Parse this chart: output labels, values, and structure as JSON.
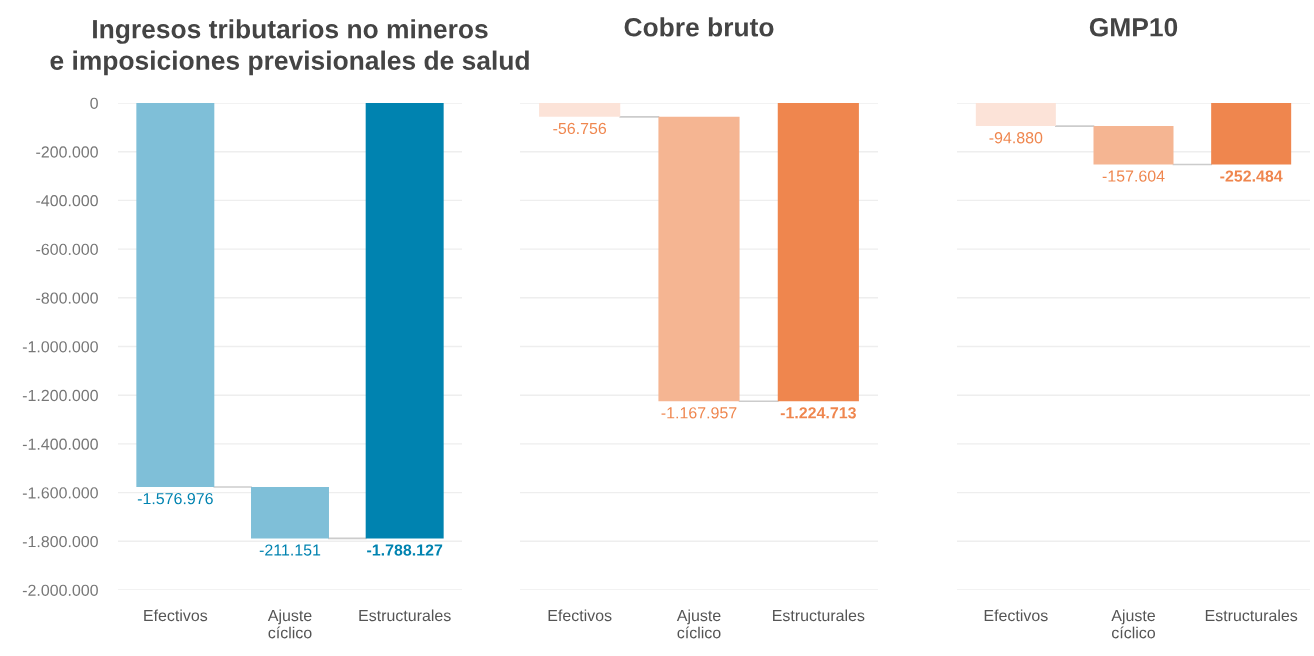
{
  "chart_data": [
    {
      "type": "bar",
      "title": "Ingresos tributarios no mineros\ne imposiciones previsionales de salud",
      "categories": [
        "Efectivos",
        "Ajuste\ncíclico",
        "Estructurales"
      ],
      "values": [
        -1576976,
        -211151,
        -1788127
      ],
      "base": [
        0,
        -1576976,
        0
      ],
      "colors": [
        "#7fbfd8",
        "#7fbfd8",
        "#0083b0"
      ],
      "value_labels": [
        "-1.576.976",
        "-211.151",
        "-1.788.127"
      ],
      "ylim": [
        -2000000,
        0
      ],
      "yticks": [
        {
          "value": 0,
          "label": "0"
        },
        {
          "value": -200000,
          "label": "-200.000"
        },
        {
          "value": -400000,
          "label": "-400.000"
        },
        {
          "value": -600000,
          "label": "-600.000"
        },
        {
          "value": -800000,
          "label": "-800.000"
        },
        {
          "value": -1000000,
          "label": "-1.000.000"
        },
        {
          "value": -1200000,
          "label": "-1.200.000"
        },
        {
          "value": -1400000,
          "label": "-1.400.000"
        },
        {
          "value": -1600000,
          "label": "-1.600.000"
        },
        {
          "value": -1800000,
          "label": "-1.800.000"
        },
        {
          "value": -2000000,
          "label": "-2.000.000"
        }
      ],
      "grid": "y"
    },
    {
      "type": "bar",
      "title": "Cobre bruto",
      "categories": [
        "Efectivos",
        "Ajuste\ncíclico",
        "Estructurales"
      ],
      "values": [
        -56756,
        -1167957,
        -1224713
      ],
      "base": [
        0,
        -56756,
        0
      ],
      "colors": [
        "#fce3d8",
        "#f5b592",
        "#ef864e"
      ],
      "value_labels": [
        "-56.756",
        "-1.167.957",
        "-1.224.713"
      ],
      "ylim": [
        -2000000,
        0
      ],
      "yticks": [
        {
          "value": 0,
          "label": null
        },
        {
          "value": -200000,
          "label": null
        },
        {
          "value": -400000,
          "label": null
        },
        {
          "value": -600000,
          "label": null
        },
        {
          "value": -800000,
          "label": null
        },
        {
          "value": -1000000,
          "label": null
        },
        {
          "value": -1200000,
          "label": null
        },
        {
          "value": -1400000,
          "label": null
        },
        {
          "value": -1600000,
          "label": null
        },
        {
          "value": -1800000,
          "label": null
        },
        {
          "value": -2000000,
          "label": null
        }
      ],
      "grid": "y",
      "tick_labels": "x"
    },
    {
      "type": "bar",
      "title": "GMP10",
      "categories": [
        "Efectivos",
        "Ajuste\ncíclico",
        "Estructurales"
      ],
      "values": [
        -94880,
        -157604,
        -252484
      ],
      "base": [
        0,
        -94880,
        0
      ],
      "colors": [
        "#fce3d8",
        "#f5b592",
        "#ef864e"
      ],
      "value_labels": [
        "-94.880",
        "-157.604",
        "-252.484"
      ],
      "ylim": [
        -2000000,
        0
      ],
      "yticks": [
        {
          "value": 0,
          "label": null
        },
        {
          "value": -200000,
          "label": null
        },
        {
          "value": -400000,
          "label": null
        },
        {
          "value": -600000,
          "label": null
        },
        {
          "value": -800000,
          "label": null
        },
        {
          "value": -1000000,
          "label": null
        },
        {
          "value": -1200000,
          "label": null
        },
        {
          "value": -1400000,
          "label": null
        },
        {
          "value": -1600000,
          "label": null
        },
        {
          "value": -1800000,
          "label": null
        },
        {
          "value": -2000000,
          "label": null
        }
      ],
      "grid": "y",
      "tick_labels": "x"
    }
  ]
}
